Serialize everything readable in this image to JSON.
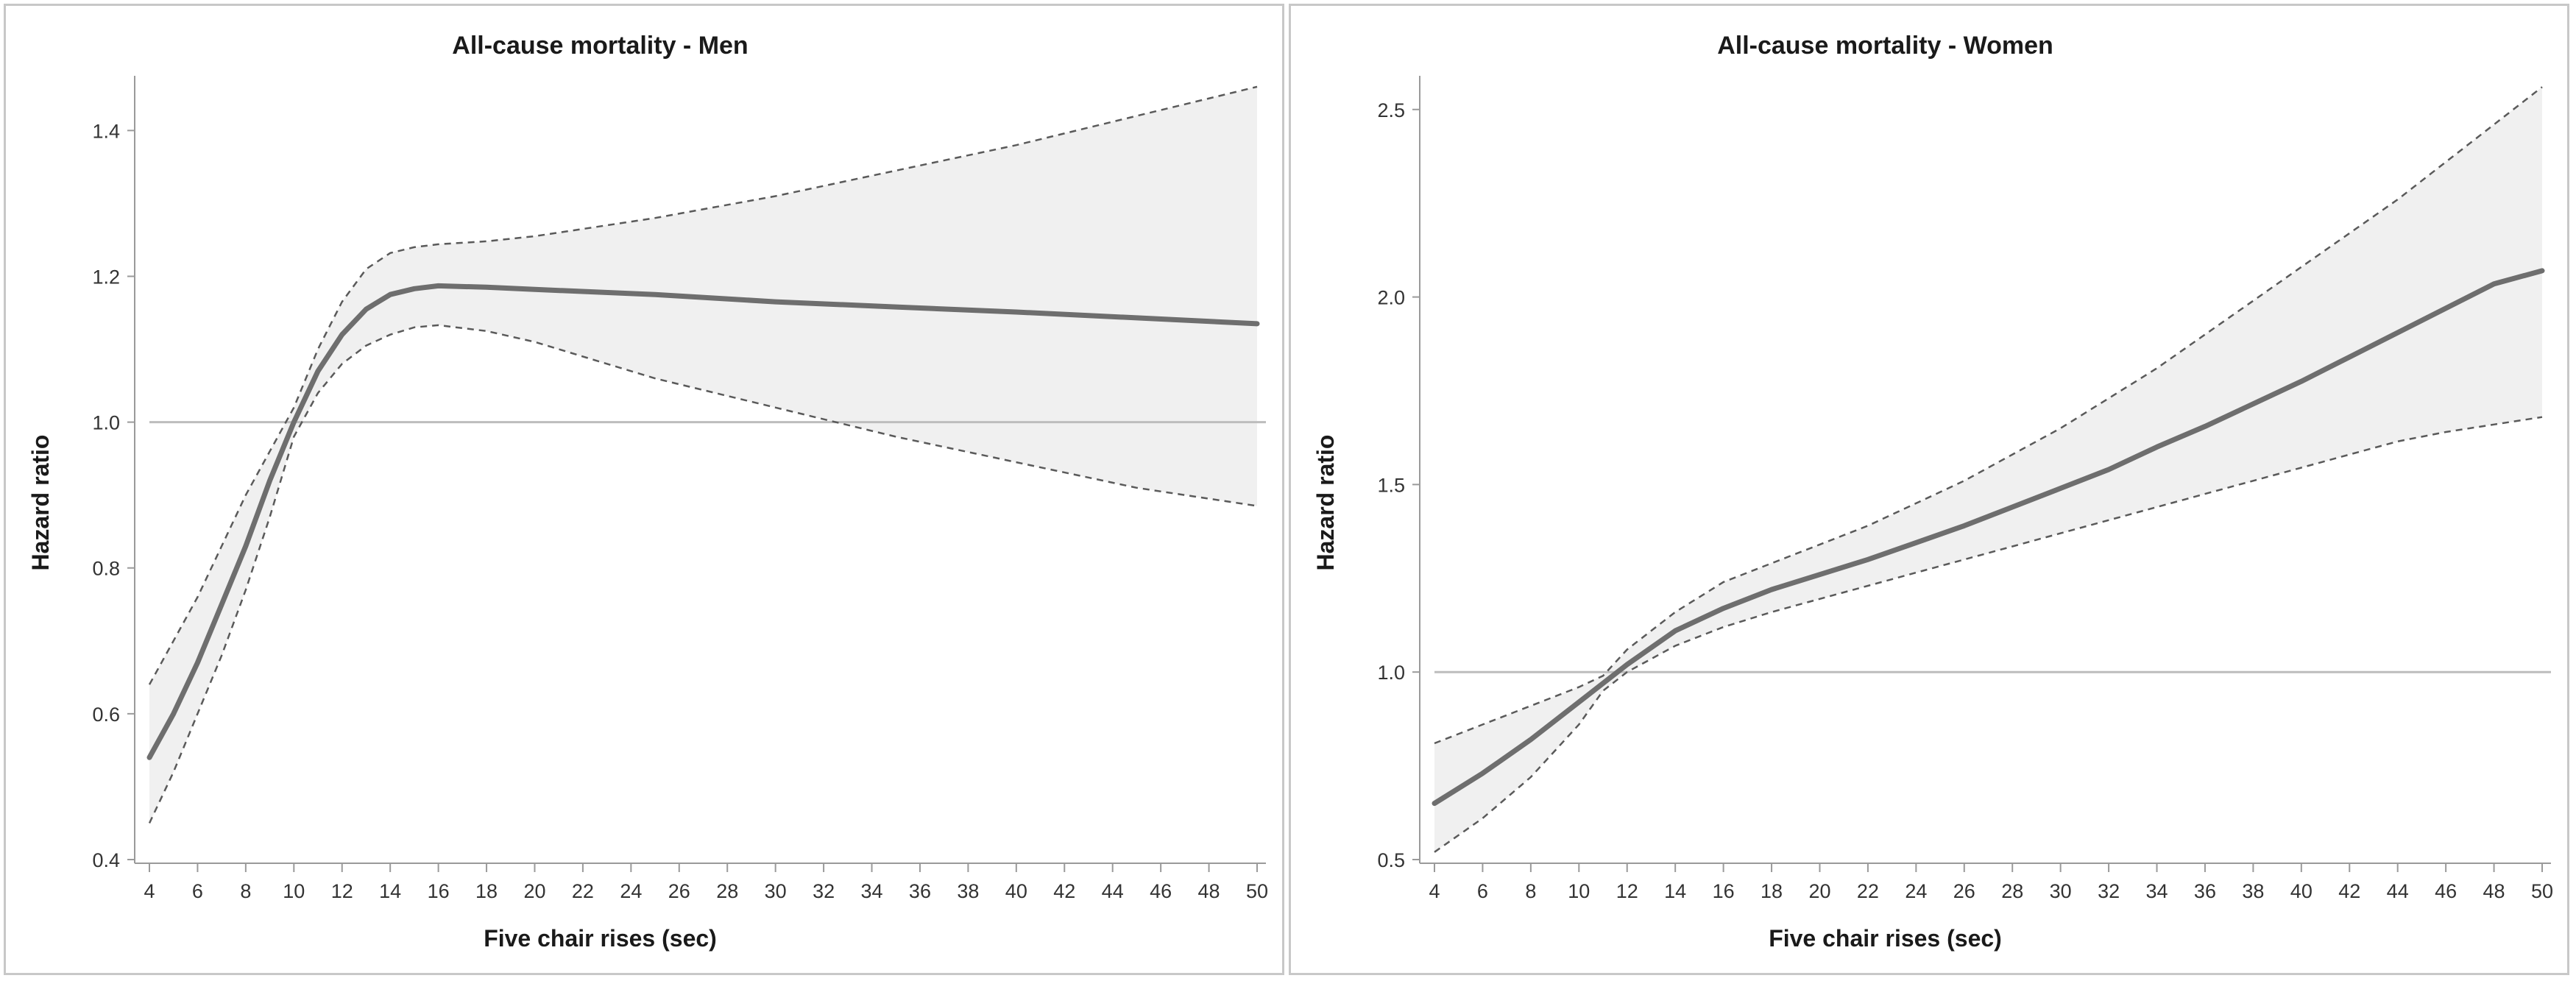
{
  "colors": {
    "band_fill": "#f0f0f0",
    "line": "#6e6e6e",
    "ci_line": "#5a5a5a",
    "reference": "#bdbdbd",
    "axis": "#9a9a9a",
    "text": "#1a1a1a"
  },
  "chart_data": [
    {
      "type": "line",
      "title": "All-cause mortality - Men",
      "xlabel": "Five chair rises (sec)",
      "ylabel": "Hazard ratio",
      "xlim": [
        4,
        50
      ],
      "ylim": [
        0.4,
        1.47
      ],
      "xticks": [
        4,
        6,
        8,
        10,
        12,
        14,
        16,
        18,
        20,
        22,
        24,
        26,
        28,
        30,
        32,
        34,
        36,
        38,
        40,
        42,
        44,
        46,
        48,
        50
      ],
      "xtick_labels": [
        "4",
        "6",
        "8",
        "10",
        "12",
        "14",
        "16",
        "18",
        "20",
        "22",
        "24",
        "26",
        "28",
        "30",
        "32",
        "34",
        "36",
        "38",
        "40",
        "42",
        "44",
        "46",
        "48",
        "50"
      ],
      "yticks": [
        0.4,
        0.6,
        0.8,
        1.0,
        1.2,
        1.4
      ],
      "ytick_labels": [
        "0.4",
        "0.6",
        "0.8",
        "1.0",
        "1.2",
        "1.4"
      ],
      "reference_line": 1.0,
      "grid": false,
      "x": [
        4,
        5,
        6,
        7,
        8,
        9,
        10,
        11,
        12,
        13,
        14,
        15,
        16,
        18,
        20,
        25,
        30,
        35,
        40,
        45,
        50
      ],
      "series": [
        {
          "role": "estimate",
          "values": [
            0.54,
            0.6,
            0.67,
            0.75,
            0.83,
            0.92,
            1.0,
            1.07,
            1.12,
            1.155,
            1.175,
            1.183,
            1.187,
            1.185,
            1.182,
            1.175,
            1.165,
            1.158,
            1.151,
            1.143,
            1.135
          ]
        },
        {
          "role": "upper",
          "values": [
            0.64,
            0.7,
            0.76,
            0.83,
            0.9,
            0.96,
            1.02,
            1.1,
            1.165,
            1.21,
            1.232,
            1.24,
            1.244,
            1.248,
            1.255,
            1.28,
            1.31,
            1.345,
            1.38,
            1.42,
            1.46
          ]
        },
        {
          "role": "lower",
          "values": [
            0.45,
            0.52,
            0.6,
            0.68,
            0.77,
            0.87,
            0.98,
            1.04,
            1.08,
            1.105,
            1.12,
            1.13,
            1.133,
            1.125,
            1.11,
            1.06,
            1.02,
            0.98,
            0.945,
            0.91,
            0.885
          ]
        }
      ]
    },
    {
      "type": "line",
      "title": "All-cause mortality - Women",
      "xlabel": "Five chair rises (sec)",
      "ylabel": "Hazard ratio",
      "xlim": [
        4,
        50
      ],
      "ylim": [
        0.5,
        2.58
      ],
      "xticks": [
        4,
        6,
        8,
        10,
        12,
        14,
        16,
        18,
        20,
        22,
        24,
        26,
        28,
        30,
        32,
        34,
        36,
        38,
        40,
        42,
        44,
        46,
        48,
        50
      ],
      "xtick_labels": [
        "4",
        "6",
        "8",
        "10",
        "12",
        "14",
        "16",
        "18",
        "20",
        "22",
        "24",
        "26",
        "28",
        "30",
        "32",
        "34",
        "36",
        "38",
        "40",
        "42",
        "44",
        "46",
        "48",
        "50"
      ],
      "yticks": [
        0.5,
        1.0,
        1.5,
        2.0,
        2.5
      ],
      "ytick_labels": [
        "0.5",
        "1.0",
        "1.5",
        "2.0",
        "2.5"
      ],
      "reference_line": 1.0,
      "grid": false,
      "x": [
        4,
        6,
        8,
        10,
        11,
        12,
        14,
        16,
        18,
        20,
        22,
        24,
        26,
        28,
        30,
        32,
        34,
        36,
        38,
        40,
        42,
        44,
        46,
        48,
        50
      ],
      "series": [
        {
          "role": "estimate",
          "values": [
            0.65,
            0.73,
            0.82,
            0.92,
            0.97,
            1.02,
            1.11,
            1.17,
            1.22,
            1.26,
            1.3,
            1.345,
            1.39,
            1.44,
            1.49,
            1.54,
            1.6,
            1.655,
            1.715,
            1.775,
            1.84,
            1.905,
            1.97,
            2.035,
            2.07
          ]
        },
        {
          "role": "upper",
          "values": [
            0.81,
            0.86,
            0.91,
            0.96,
            0.99,
            1.06,
            1.16,
            1.24,
            1.29,
            1.34,
            1.39,
            1.45,
            1.51,
            1.58,
            1.65,
            1.73,
            1.81,
            1.9,
            1.99,
            2.08,
            2.17,
            2.26,
            2.36,
            2.46,
            2.56
          ]
        },
        {
          "role": "lower",
          "values": [
            0.52,
            0.61,
            0.72,
            0.86,
            0.95,
            1.0,
            1.07,
            1.12,
            1.16,
            1.195,
            1.23,
            1.265,
            1.3,
            1.335,
            1.37,
            1.405,
            1.44,
            1.475,
            1.51,
            1.545,
            1.58,
            1.615,
            1.64,
            1.66,
            1.68
          ]
        }
      ]
    }
  ]
}
